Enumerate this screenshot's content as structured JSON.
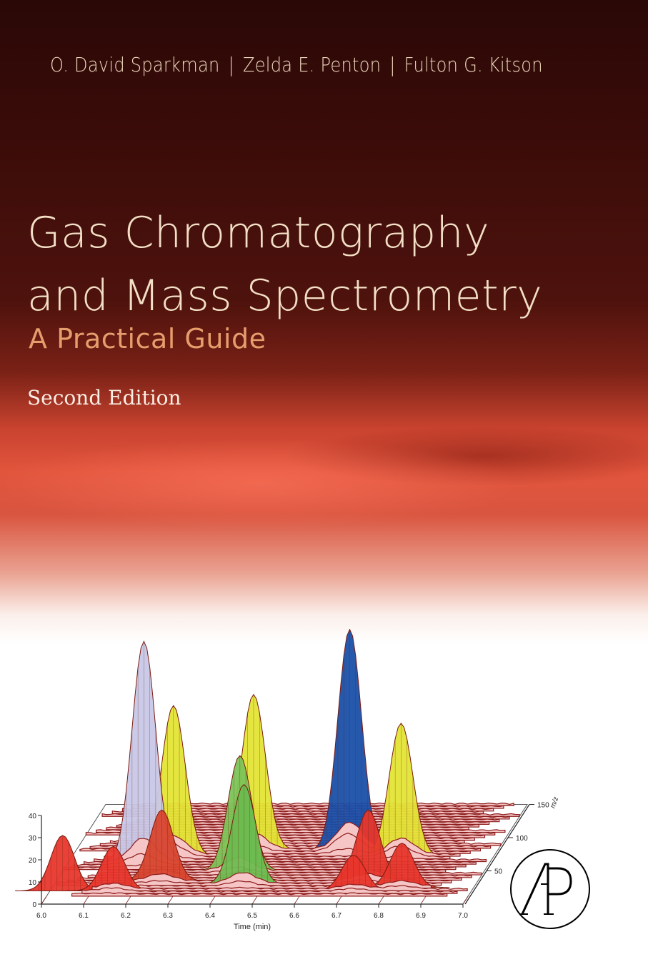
{
  "cover": {
    "authors": [
      "O. David Sparkman",
      "Zelda E. Penton",
      "Fulton G. Kitson"
    ],
    "separator": "|",
    "title_line1": "Gas Chromatography",
    "title_line2": "and Mass Spectrometry",
    "subtitle": "A Practical Guide",
    "edition": "Second Edition",
    "publisher_logo": "AP",
    "colors": {
      "background_top": "#2a0806",
      "glow": "#e2553d",
      "title": "#f3dfc6",
      "subtitle": "#e69d6c"
    }
  },
  "chart_data": {
    "type": "3d-waterfall",
    "xlabel": "Time (min)",
    "zlabel": "m/z",
    "x_ticks": [
      "6.0",
      "6.1",
      "6.2",
      "6.3",
      "6.4",
      "6.5",
      "6.6",
      "6.7",
      "6.8",
      "6.9",
      "7.0"
    ],
    "y_ticks": [
      "0",
      "10",
      "20",
      "30",
      "40"
    ],
    "z_ticks": [
      "50",
      "100",
      "150"
    ],
    "xlim": [
      6.0,
      7.0
    ],
    "ylim": [
      0,
      40
    ],
    "zlim": [
      0,
      150
    ],
    "peaks": [
      {
        "time": 6.03,
        "mz": 20,
        "intensity": 25,
        "color": "#e8362c"
      },
      {
        "time": 6.18,
        "mz": 62,
        "intensity": 100,
        "color": "#c8c8e8"
      },
      {
        "time": 6.24,
        "mz": 72,
        "intensity": 68,
        "color": "#e4e436"
      },
      {
        "time": 6.15,
        "mz": 20,
        "intensity": 20,
        "color": "#e8362c"
      },
      {
        "time": 6.25,
        "mz": 35,
        "intensity": 32,
        "color": "#d8442e"
      },
      {
        "time": 6.42,
        "mz": 82,
        "intensity": 70,
        "color": "#e4e436"
      },
      {
        "time": 6.42,
        "mz": 50,
        "intensity": 52,
        "color": "#7cc458"
      },
      {
        "time": 6.45,
        "mz": 30,
        "intensity": 45,
        "color": "#6cbc50"
      },
      {
        "time": 6.65,
        "mz": 80,
        "intensity": 100,
        "color": "#1a4fa8"
      },
      {
        "time": 6.74,
        "mz": 35,
        "intensity": 32,
        "color": "#e8362c"
      },
      {
        "time": 6.72,
        "mz": 20,
        "intensity": 16,
        "color": "#e8362c"
      },
      {
        "time": 6.78,
        "mz": 72,
        "intensity": 60,
        "color": "#e4e436"
      },
      {
        "time": 6.83,
        "mz": 25,
        "intensity": 20,
        "color": "#e8362c"
      }
    ]
  }
}
